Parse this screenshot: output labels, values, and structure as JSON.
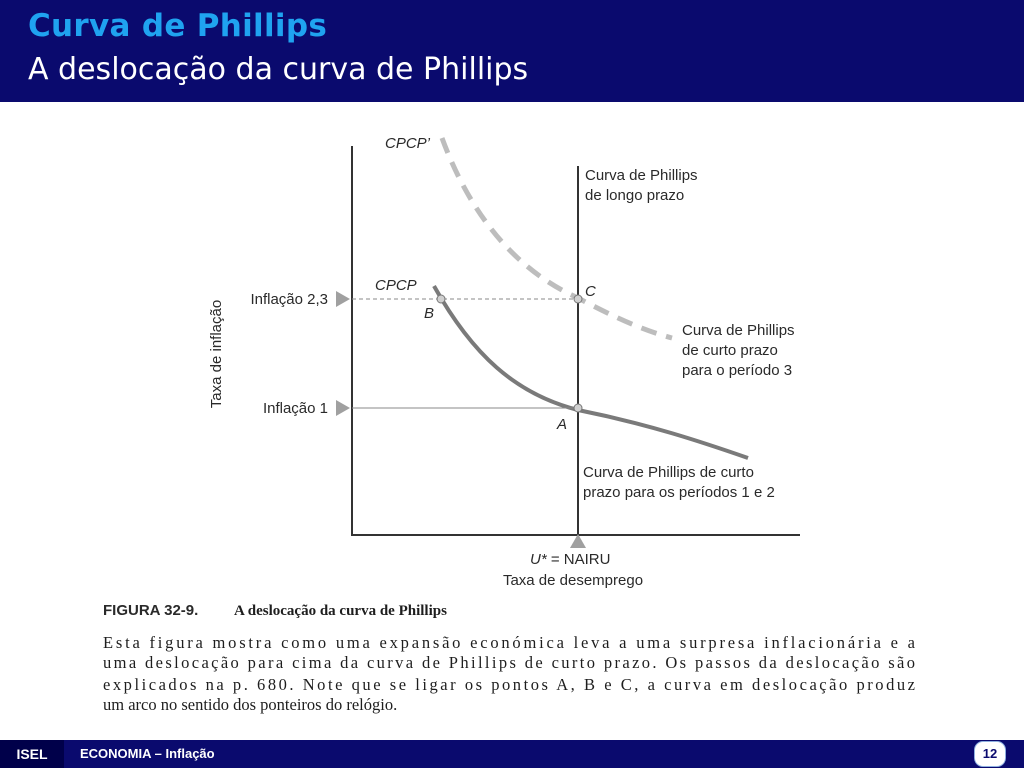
{
  "slide": {
    "title": "Curva de Phillips",
    "subtitle": "A deslocação da curva de Phillips"
  },
  "diagram": {
    "y_axis_label": "Taxa de inflação",
    "x_axis_label": "Taxa de desemprego",
    "y_levels": [
      {
        "label": "Inflação 2,3"
      },
      {
        "label": "Inflação 1"
      }
    ],
    "x_marker_label_var": "U*",
    "x_marker_label_rest": " = NAIRU",
    "curves": {
      "short_run_shifted": {
        "tag": "CPCP’",
        "description": [
          "Curva de Phillips",
          "de curto prazo",
          "para o período 3"
        ],
        "color": "#bdbdbd"
      },
      "short_run": {
        "tag": "CPCP",
        "description": [
          "Curva de Phillips de curto",
          "prazo para os períodos 1 e 2"
        ],
        "color": "#7a7a7a"
      },
      "long_run": {
        "description": [
          "Curva de Phillips",
          "de longo prazo"
        ]
      }
    },
    "points": [
      "A",
      "B",
      "C"
    ]
  },
  "caption": {
    "figure_number": "FIGURA 32-9.",
    "figure_title": "A deslocação da curva de Phillips",
    "lines": [
      "Esta figura mostra como uma expansão económica leva a uma surpresa inflacionária e a",
      "uma deslocação para cima da curva de Phillips de curto prazo. Os passos da deslocação são",
      "explicados na p. 680. Note que se ligar os pontos A, B e C, a curva em deslocação produz",
      "um arco no sentido dos ponteiros do relógio."
    ]
  },
  "footer": {
    "org": "ISEL",
    "text": "ECONOMIA – Inflação",
    "page": "12"
  }
}
